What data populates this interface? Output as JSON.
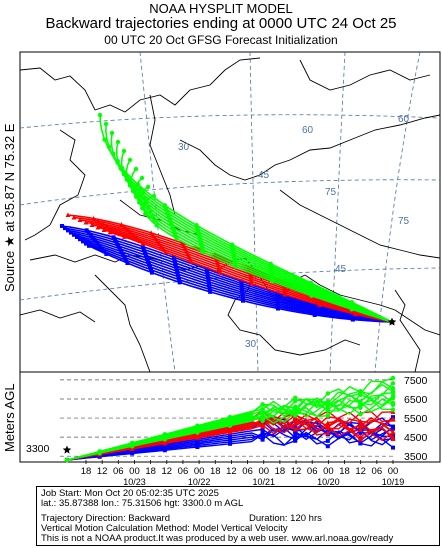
{
  "header": {
    "line1": "NOAA HYSPLIT MODEL",
    "line2": "Backward trajectories ending at 0000 UTC 24 Oct 25",
    "line3": "00 UTC 20 Oct    GFSG  Forecast Initialization"
  },
  "source_label": "Source ★ at   35.87 N   75.32 E",
  "altitude_axis_label": "Meters AGL",
  "map": {
    "lat_labels": [
      "30",
      "45",
      "60",
      "75"
    ],
    "lon_labels": [
      "30",
      "45",
      "60",
      "75"
    ],
    "colors": {
      "red": "#ff0000",
      "blue": "#0000ff",
      "green": "#00ff00",
      "land": "#ffffff",
      "coast": "#000000",
      "grid": "#4a74a8"
    }
  },
  "chart_data": {
    "type": "line",
    "y_ticks": [
      "7500",
      "6500",
      "5500",
      "4500",
      "3500"
    ],
    "start_height_label": "3300",
    "x_hour_labels": [
      "18",
      "12",
      "06",
      "00",
      "18",
      "12",
      "06",
      "00",
      "18",
      "12",
      "06",
      "00",
      "18",
      "12",
      "06",
      "00",
      "18",
      "12",
      "06",
      "00"
    ],
    "x_date_labels": [
      "10/23",
      "10/22",
      "10/21",
      "10/20",
      "10/19"
    ],
    "series_colors": [
      "#ff0000",
      "#0000ff",
      "#00ff00"
    ]
  },
  "footer": {
    "job": "Job Start: Mon Oct 20 05:02:35 UTC 2025",
    "location": "lat.: 35.87388   lon.: 75.31506   hgt: 3300.0 m AGL",
    "direction": "Trajectory Direction: Backward",
    "duration": "Duration: 120 hrs",
    "method": "Vertical Motion Calculation Method: Model Vertical Velocity",
    "disclaimer": "This is not a NOAA product.It was produced by a web user. www.arl.noaa.gov/ready"
  }
}
